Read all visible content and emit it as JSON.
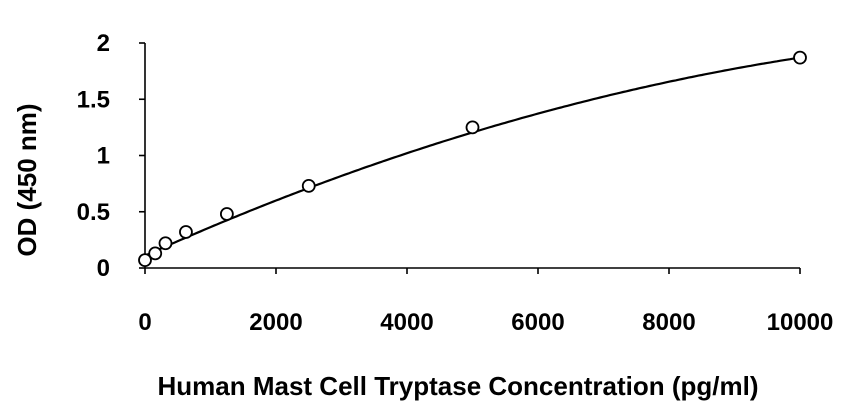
{
  "chart_data": {
    "type": "scatter",
    "title": "",
    "xlabel": "Human Mast Cell Tryptase Concentration (pg/ml)",
    "ylabel": "OD (450 nm)",
    "xlim": [
      0,
      10000
    ],
    "ylim": [
      0,
      2
    ],
    "xticks": [
      0,
      2000,
      4000,
      6000,
      8000,
      10000
    ],
    "yticks": [
      0,
      0.5,
      1,
      1.5,
      2
    ],
    "ytick_labels": [
      "0",
      "0.5",
      "1",
      "1.5",
      "2"
    ],
    "grid": false,
    "legend": "none",
    "series": [
      {
        "marker": "open-circle",
        "x": [
          0,
          156,
          313,
          625,
          1250,
          2500,
          5000,
          10000
        ],
        "y": [
          0.07,
          0.13,
          0.22,
          0.32,
          0.48,
          0.73,
          1.25,
          1.87
        ]
      }
    ],
    "trendline": {
      "type": "polynomial-2",
      "coefficients": [
        0.11,
        0.000262,
        -8.6e-09
      ]
    }
  }
}
